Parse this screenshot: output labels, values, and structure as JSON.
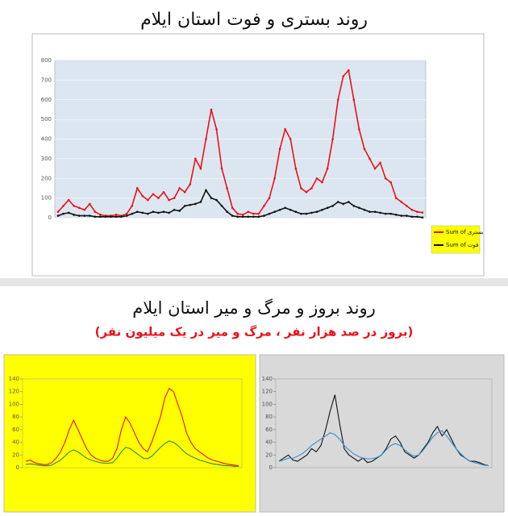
{
  "title": "روند بستری و فوت استان ایلام",
  "title2": "روند بروز و مرگ و میر استان ایلام",
  "subtitle2": "(بروز در صد هزار نفر ، مرگ و میر در یک میلیون نفر)",
  "chart_data": [
    {
      "type": "line",
      "ylim": [
        0,
        800
      ],
      "yticks": [
        0,
        100,
        200,
        300,
        400,
        500,
        600,
        700,
        800
      ],
      "grid": true,
      "legend": "right",
      "series": [
        {
          "name": "Sum of بستری",
          "color": "#e8121b",
          "values": [
            30,
            60,
            90,
            60,
            50,
            40,
            70,
            30,
            15,
            10,
            10,
            15,
            10,
            20,
            60,
            150,
            110,
            90,
            120,
            100,
            130,
            90,
            100,
            150,
            130,
            170,
            300,
            250,
            400,
            550,
            450,
            250,
            150,
            50,
            20,
            15,
            30,
            20,
            20,
            60,
            100,
            200,
            350,
            450,
            400,
            250,
            150,
            130,
            150,
            200,
            180,
            250,
            400,
            600,
            720,
            750,
            600,
            450,
            350,
            300,
            250,
            280,
            200,
            180,
            100,
            80,
            60,
            40,
            30,
            26
          ]
        },
        {
          "name": "Sum of فوت",
          "color": "#111111",
          "values": [
            10,
            20,
            25,
            15,
            10,
            10,
            10,
            5,
            5,
            5,
            5,
            5,
            5,
            10,
            20,
            30,
            25,
            20,
            30,
            25,
            30,
            25,
            40,
            35,
            60,
            65,
            70,
            80,
            140,
            100,
            90,
            60,
            30,
            10,
            5,
            5,
            5,
            5,
            5,
            10,
            20,
            30,
            40,
            50,
            40,
            30,
            20,
            20,
            25,
            30,
            40,
            50,
            60,
            80,
            70,
            80,
            60,
            50,
            40,
            30,
            30,
            25,
            20,
            20,
            15,
            10,
            10,
            5,
            5,
            1
          ]
        }
      ]
    },
    {
      "type": "line",
      "ylim": [
        0,
        140
      ],
      "yticks": [
        0,
        20,
        40,
        60,
        80,
        100,
        120,
        140
      ],
      "grid": false,
      "background": "#ffff00",
      "series": [
        {
          "color": "#e8121b",
          "values": [
            10,
            12,
            8,
            6,
            5,
            5,
            8,
            15,
            25,
            40,
            60,
            75,
            60,
            45,
            30,
            20,
            15,
            12,
            10,
            10,
            15,
            30,
            60,
            80,
            70,
            55,
            40,
            30,
            25,
            40,
            60,
            80,
            110,
            125,
            120,
            100,
            80,
            55,
            40,
            30,
            25,
            20,
            15,
            12,
            10,
            8,
            6,
            5,
            4,
            3
          ]
        },
        {
          "color": "#2e8b3a",
          "values": [
            5,
            6,
            5,
            4,
            3,
            3,
            4,
            8,
            12,
            18,
            25,
            28,
            25,
            20,
            15,
            12,
            10,
            8,
            7,
            7,
            8,
            15,
            25,
            32,
            30,
            25,
            20,
            15,
            14,
            18,
            25,
            32,
            38,
            42,
            40,
            35,
            28,
            22,
            18,
            15,
            12,
            10,
            8,
            6,
            5,
            4,
            3,
            3,
            2,
            2
          ]
        }
      ]
    },
    {
      "type": "line",
      "ylim": [
        0,
        140
      ],
      "yticks": [
        0,
        20,
        40,
        60,
        80,
        100,
        120,
        140
      ],
      "grid": false,
      "background": "#d9d9d9",
      "series": [
        {
          "color": "#111111",
          "values": [
            10,
            15,
            20,
            12,
            10,
            15,
            20,
            30,
            25,
            35,
            60,
            90,
            115,
            70,
            30,
            20,
            15,
            10,
            15,
            8,
            10,
            15,
            20,
            30,
            45,
            50,
            40,
            25,
            20,
            15,
            20,
            30,
            40,
            55,
            65,
            50,
            60,
            45,
            30,
            20,
            15,
            10,
            10,
            8,
            5,
            3
          ]
        },
        {
          "color": "#2f8fd0",
          "values": [
            10,
            12,
            15,
            15,
            18,
            22,
            28,
            35,
            40,
            45,
            50,
            55,
            52,
            45,
            35,
            28,
            22,
            18,
            15,
            14,
            14,
            16,
            20,
            28,
            35,
            38,
            35,
            28,
            22,
            18,
            20,
            28,
            38,
            48,
            55,
            58,
            50,
            40,
            30,
            22,
            15,
            10,
            8,
            6,
            4,
            3
          ]
        }
      ]
    }
  ]
}
